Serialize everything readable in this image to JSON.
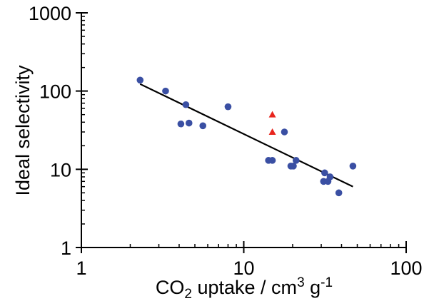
{
  "chart_data": {
    "type": "scatter",
    "title": "",
    "xlabel": {
      "base": "CO",
      "sub": "2",
      "mid": " uptake / cm",
      "sup1": "3",
      "mid2": " g",
      "sup2": "-1"
    },
    "ylabel": "Ideal selectivity",
    "xscale": "log",
    "yscale": "log",
    "xlim": [
      1,
      100
    ],
    "ylim": [
      1,
      1000
    ],
    "x_ticks": [
      {
        "value": 1,
        "label": "1"
      },
      {
        "value": 10,
        "label": "10"
      },
      {
        "value": 100,
        "label": "100"
      }
    ],
    "y_ticks": [
      {
        "value": 1,
        "label": "1"
      },
      {
        "value": 10,
        "label": "10"
      },
      {
        "value": 100,
        "label": "100"
      },
      {
        "value": 1000,
        "label": "1000"
      }
    ],
    "grid": false,
    "legend": "none",
    "series": [
      {
        "marker": "circle",
        "color": "#3a4fa3",
        "points": [
          [
            2.3,
            138
          ],
          [
            3.3,
            100
          ],
          [
            4.1,
            38
          ],
          [
            4.4,
            67
          ],
          [
            4.6,
            39
          ],
          [
            5.6,
            36
          ],
          [
            8.0,
            63
          ],
          [
            14.2,
            13
          ],
          [
            15.0,
            13
          ],
          [
            17.8,
            30
          ],
          [
            19.5,
            11
          ],
          [
            20.2,
            11
          ],
          [
            21.0,
            13
          ],
          [
            31.0,
            7
          ],
          [
            31.5,
            9
          ],
          [
            33.0,
            7
          ],
          [
            34.0,
            8
          ],
          [
            38.5,
            5
          ],
          [
            47.0,
            11
          ]
        ]
      },
      {
        "marker": "triangle",
        "color": "#e8251e",
        "points": [
          [
            15.0,
            50
          ],
          [
            15.0,
            30
          ]
        ]
      }
    ],
    "trendline": {
      "color": "#000000",
      "points": [
        [
          2.3,
          123
        ],
        [
          47.0,
          6
        ]
      ]
    }
  }
}
